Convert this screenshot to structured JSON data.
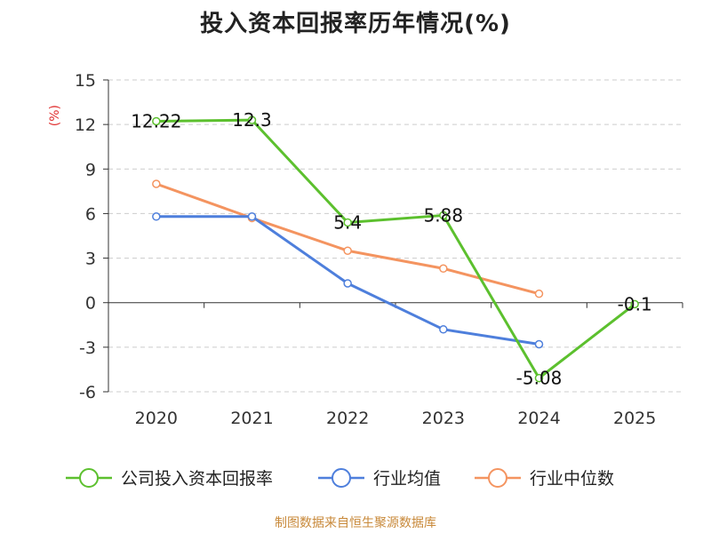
{
  "title": "投入资本回报率历年情况(%)",
  "footer": "制图数据来自恒生聚源数据库",
  "chart_data": {
    "type": "line",
    "title": "投入资本回报率历年情况(%)",
    "ylabel": "(%)",
    "xlabel": "",
    "categories": [
      "2020",
      "2021",
      "2022",
      "2023",
      "2024",
      "2025"
    ],
    "ylim": [
      -6,
      15
    ],
    "yticks": [
      "15",
      "12",
      "9",
      "6",
      "3",
      "0",
      "-3",
      "-6"
    ],
    "grid": true,
    "legend_position": "bottom",
    "series": [
      {
        "name": "公司投入资本回报率",
        "color": "#5cc02e",
        "values": [
          12.22,
          12.3,
          5.4,
          5.88,
          -5.08,
          -0.1
        ],
        "labels": [
          "12.22",
          "12.3",
          "5.4",
          "5.88",
          "-5.08",
          "-0.1"
        ]
      },
      {
        "name": "行业均值",
        "color": "#4e7fdc",
        "values": [
          5.8,
          5.8,
          1.3,
          -1.8,
          -2.8,
          null
        ]
      },
      {
        "name": "行业中位数",
        "color": "#f49460",
        "values": [
          8.0,
          5.7,
          3.5,
          2.3,
          0.6,
          null
        ]
      }
    ]
  }
}
